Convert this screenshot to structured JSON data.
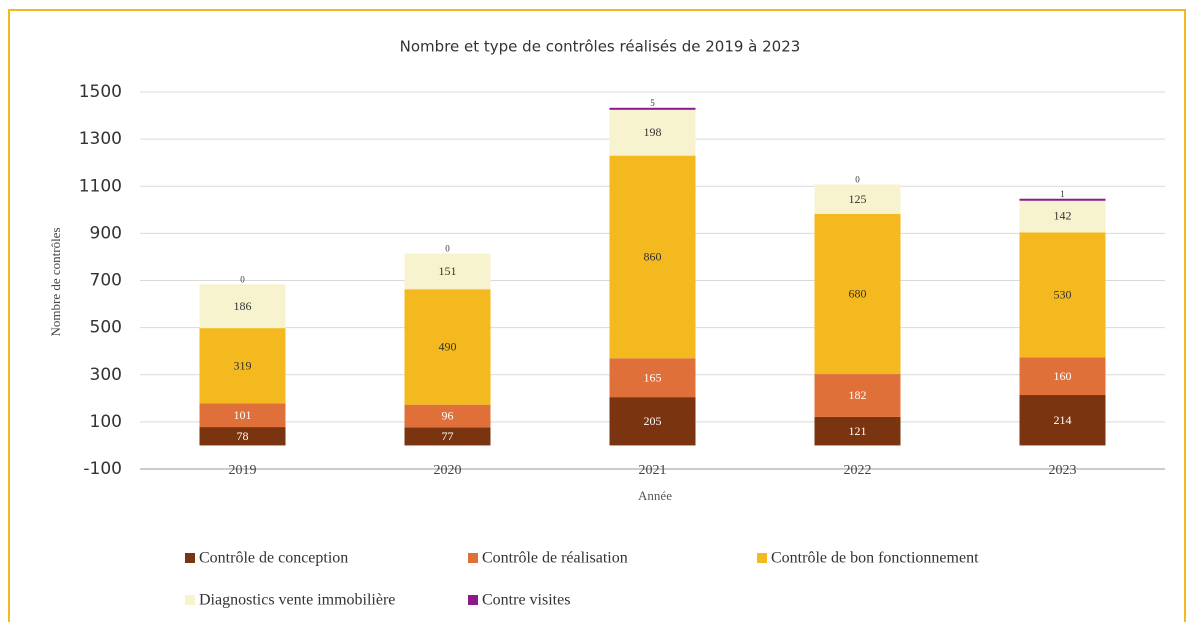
{
  "chart_data": {
    "type": "stacked_bar",
    "title": "Nombre et type de contrôles réalisés de 2019 à 2023",
    "xlabel": "Année",
    "ylabel": "Nombre de contrôles",
    "categories": [
      "2019",
      "2020",
      "2021",
      "2022",
      "2023"
    ],
    "series": [
      {
        "name": "Contrôle de conception",
        "color": "#7a3510",
        "values": [
          78,
          77,
          205,
          121,
          214
        ]
      },
      {
        "name": "Contrôle de réalisation",
        "color": "#e0703a",
        "values": [
          101,
          96,
          165,
          182,
          160
        ]
      },
      {
        "name": "Contrôle de bon fonctionnement",
        "color": "#f4b91e",
        "values": [
          319,
          490,
          860,
          680,
          530
        ]
      },
      {
        "name": "Diagnostics vente immobilière",
        "color": "#f8f3cf",
        "values": [
          186,
          151,
          198,
          125,
          142
        ]
      },
      {
        "name": "Contre visites",
        "color": "#8b1a8f",
        "values": [
          0,
          0,
          5,
          0,
          1
        ]
      }
    ],
    "ylim": [
      -100,
      1500
    ],
    "yticks": [
      -100,
      100,
      300,
      500,
      700,
      900,
      1100,
      1300,
      1500
    ],
    "grid": true
  }
}
